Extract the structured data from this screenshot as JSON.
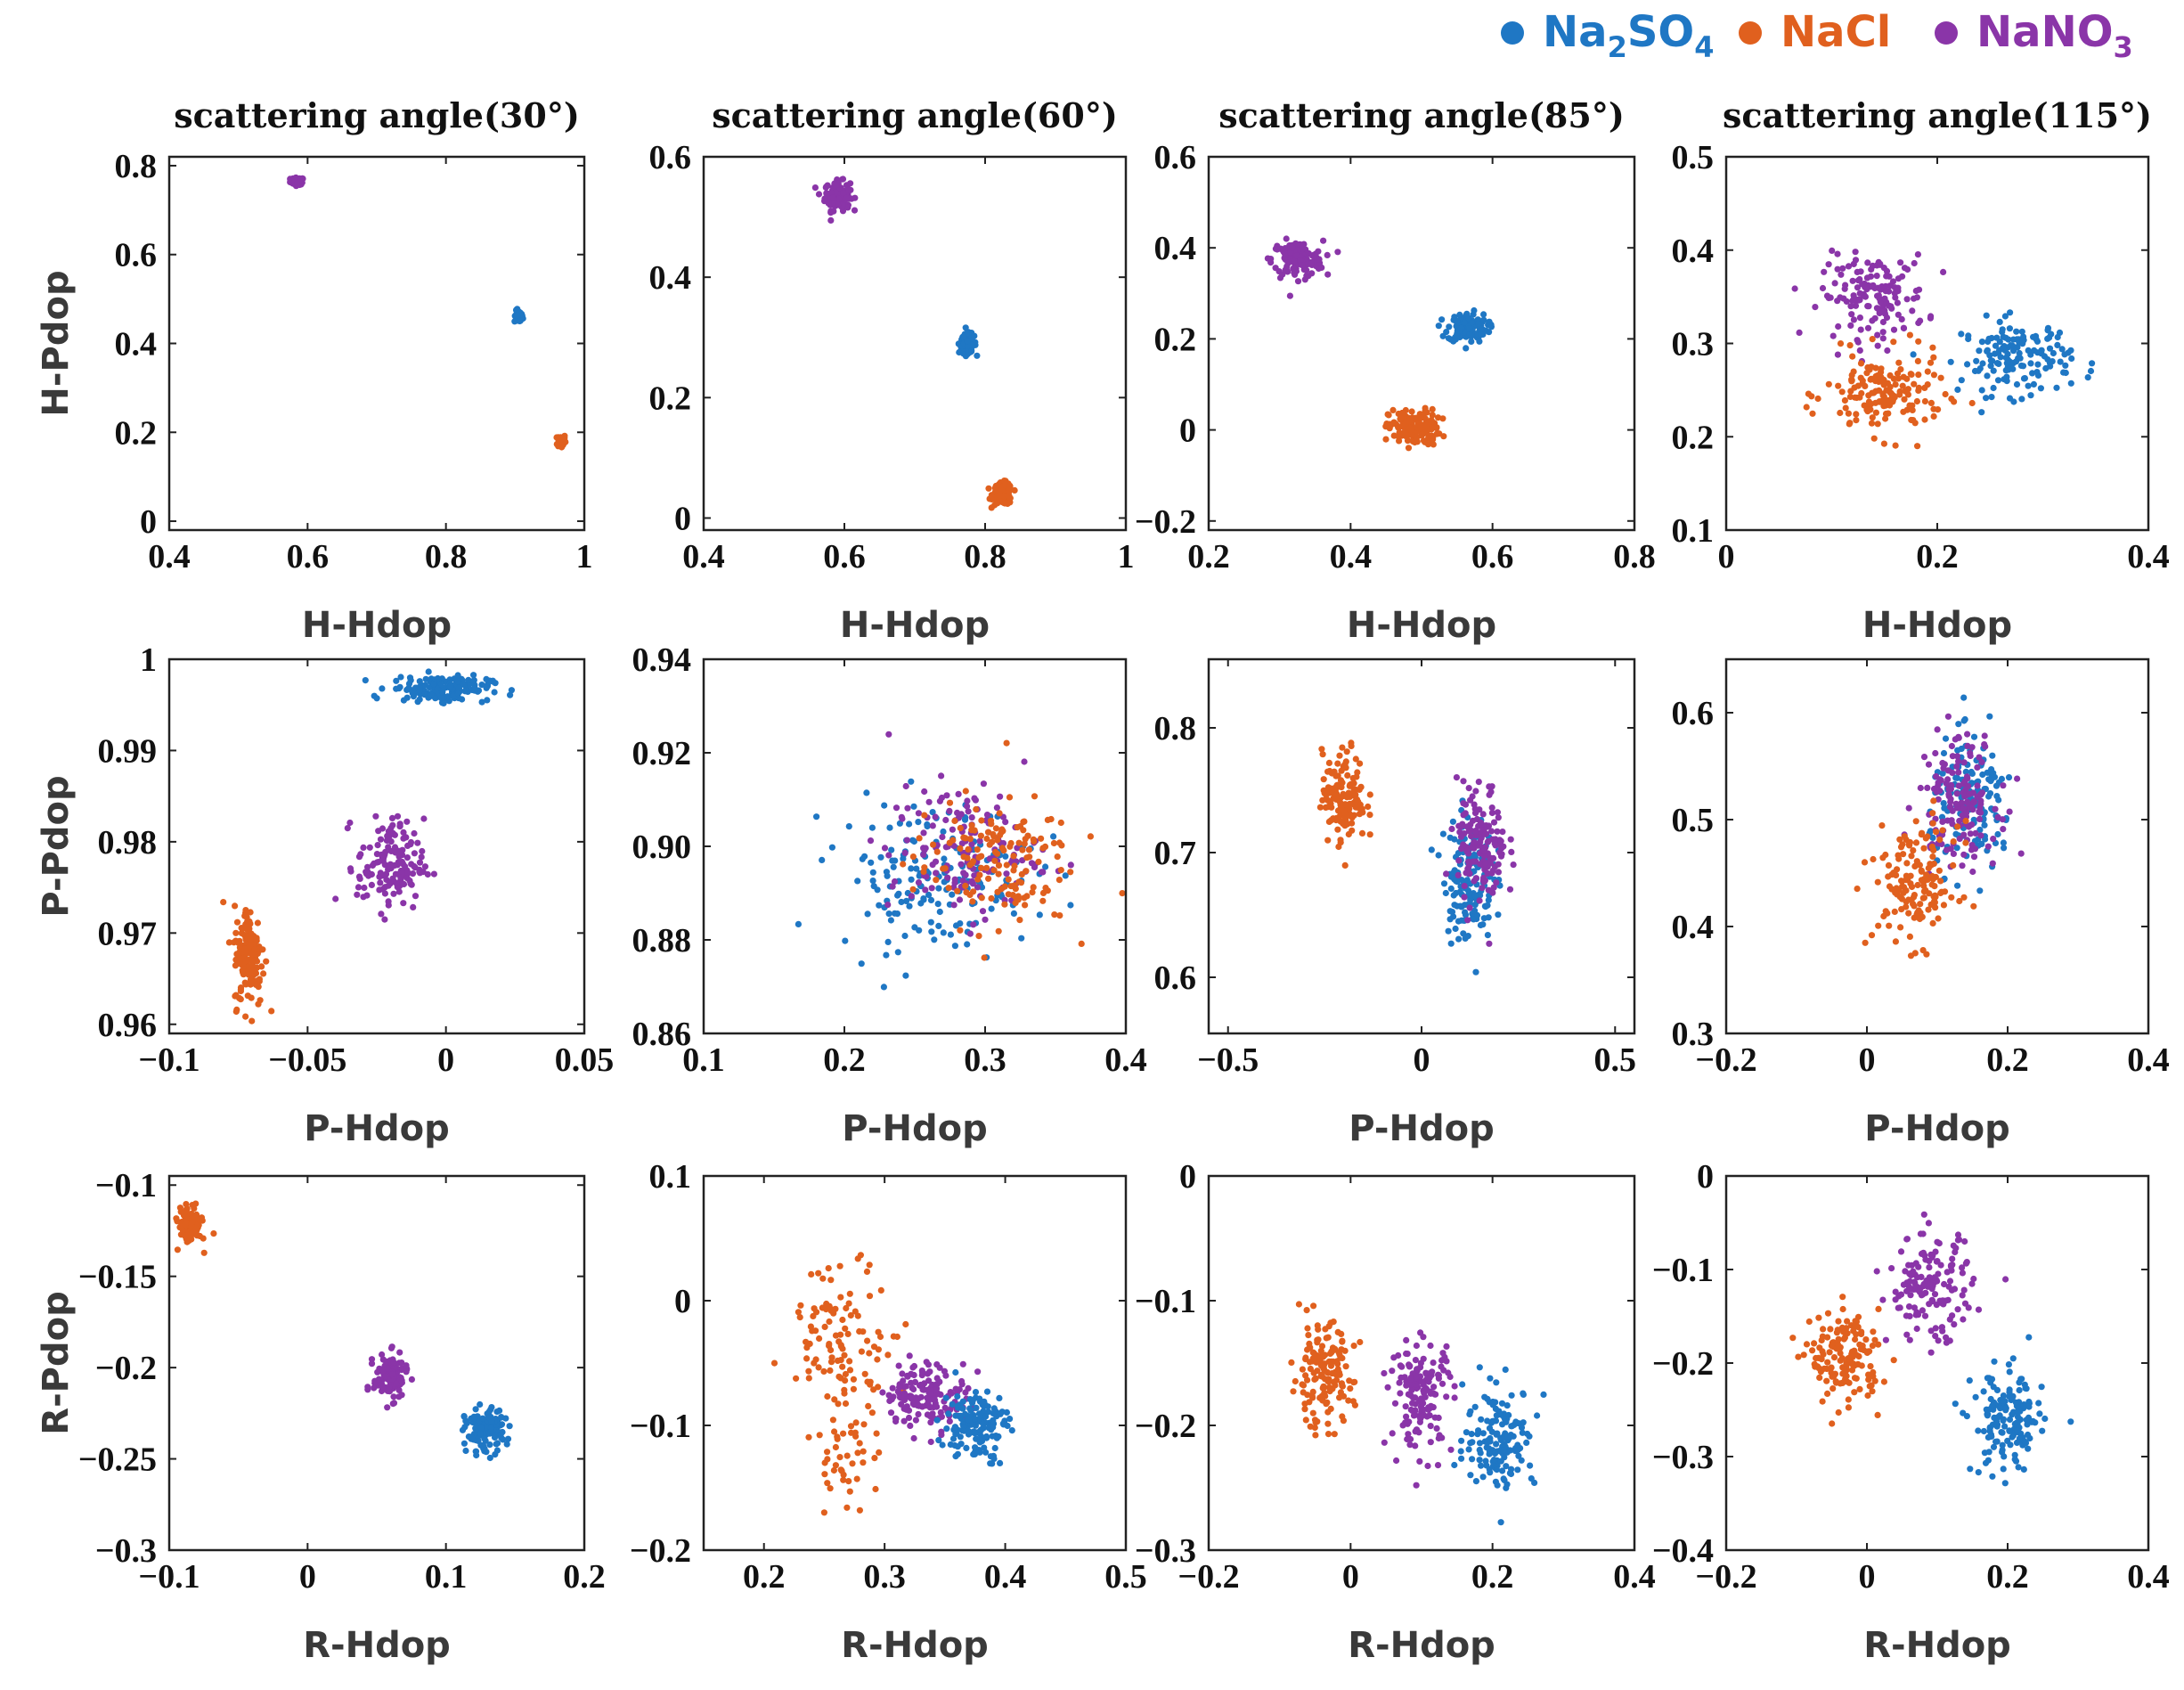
{
  "chart_data": {
    "type": "scatter",
    "legend": {
      "position": "top-right",
      "entries": [
        {
          "key": "na2so4",
          "name": "Na2SO4",
          "base": "Na",
          "sub1": "2",
          "mid": "SO",
          "sub2": "4",
          "color": "#1f77c4"
        },
        {
          "key": "nacl",
          "name": "NaCl",
          "base": "NaCl",
          "color": "#e0601e"
        },
        {
          "key": "nano3",
          "name": "NaNO3",
          "base": "NaNO",
          "sub1": "3",
          "color": "#8a35a8"
        }
      ]
    },
    "column_titles": [
      "scattering angle(30°)",
      "scattering angle(60°)",
      "scattering angle(85°)",
      "scattering angle(115°)"
    ],
    "row_ylabels": [
      "H-Pdop",
      "P-Pdop",
      "R-Pdop"
    ],
    "row_xlabels": [
      "H-Hdop",
      "P-Hdop",
      "R-Hdop"
    ],
    "panels": [
      {
        "id": "r0c0",
        "row": 0,
        "col": 0,
        "xlim": [
          0.4,
          1.0
        ],
        "ylim": [
          -0.02,
          0.82
        ],
        "xticks": [
          {
            "v": 0.4,
            "t": "0.4"
          },
          {
            "v": 0.6,
            "t": "0.6"
          },
          {
            "v": 0.8,
            "t": "0.8"
          },
          {
            "v": 1.0,
            "t": "1"
          }
        ],
        "yticks": [
          {
            "v": 0,
            "t": "0"
          },
          {
            "v": 0.2,
            "t": "0.2"
          },
          {
            "v": 0.4,
            "t": "0.4"
          },
          {
            "v": 0.6,
            "t": "0.6"
          },
          {
            "v": 0.8,
            "t": "0.8"
          }
        ],
        "clusters": [
          {
            "series": "nano3",
            "cx": 0.585,
            "cy": 0.765,
            "sx": 0.005,
            "sy": 0.004,
            "n": 60
          },
          {
            "series": "na2so4",
            "cx": 0.905,
            "cy": 0.46,
            "sx": 0.003,
            "sy": 0.007,
            "n": 50
          },
          {
            "series": "nacl",
            "cx": 0.967,
            "cy": 0.18,
            "sx": 0.003,
            "sy": 0.008,
            "n": 50
          }
        ]
      },
      {
        "id": "r0c1",
        "row": 0,
        "col": 1,
        "xlim": [
          0.4,
          1.0
        ],
        "ylim": [
          -0.02,
          0.6
        ],
        "xticks": [
          {
            "v": 0.4,
            "t": "0.4"
          },
          {
            "v": 0.6,
            "t": "0.6"
          },
          {
            "v": 0.8,
            "t": "0.8"
          },
          {
            "v": 1.0,
            "t": "1"
          }
        ],
        "yticks": [
          {
            "v": 0,
            "t": "0"
          },
          {
            "v": 0.2,
            "t": "0.2"
          },
          {
            "v": 0.4,
            "t": "0.4"
          },
          {
            "v": 0.6,
            "t": "0.6"
          }
        ],
        "clusters": [
          {
            "series": "nano3",
            "cx": 0.59,
            "cy": 0.535,
            "sx": 0.009,
            "sy": 0.012,
            "n": 120
          },
          {
            "series": "na2so4",
            "cx": 0.775,
            "cy": 0.29,
            "sx": 0.006,
            "sy": 0.008,
            "n": 110
          },
          {
            "series": "nacl",
            "cx": 0.825,
            "cy": 0.04,
            "sx": 0.007,
            "sy": 0.009,
            "n": 110
          }
        ]
      },
      {
        "id": "r0c2",
        "row": 0,
        "col": 2,
        "xlim": [
          0.2,
          0.8
        ],
        "ylim": [
          -0.22,
          0.6
        ],
        "xticks": [
          {
            "v": 0.2,
            "t": "0.2"
          },
          {
            "v": 0.4,
            "t": "0.4"
          },
          {
            "v": 0.6,
            "t": "0.6"
          },
          {
            "v": 0.8,
            "t": "0.8"
          }
        ],
        "yticks": [
          {
            "v": -0.2,
            "t": "−0.2"
          },
          {
            "v": 0,
            "t": "0"
          },
          {
            "v": 0.2,
            "t": "0.2"
          },
          {
            "v": 0.4,
            "t": "0.4"
          },
          {
            "v": 0.6,
            "t": "0.6"
          }
        ],
        "clusters": [
          {
            "series": "nano3",
            "cx": 0.325,
            "cy": 0.375,
            "sx": 0.018,
            "sy": 0.02,
            "n": 140
          },
          {
            "series": "na2so4",
            "cx": 0.565,
            "cy": 0.225,
            "sx": 0.014,
            "sy": 0.016,
            "n": 130
          },
          {
            "series": "nacl",
            "cx": 0.49,
            "cy": 0.005,
            "sx": 0.018,
            "sy": 0.02,
            "n": 150
          }
        ]
      },
      {
        "id": "r0c3",
        "row": 0,
        "col": 3,
        "xlim": [
          0,
          0.4
        ],
        "ylim": [
          0.1,
          0.5
        ],
        "xticks": [
          {
            "v": 0,
            "t": "0"
          },
          {
            "v": 0.2,
            "t": "0.2"
          },
          {
            "v": 0.4,
            "t": "0.4"
          }
        ],
        "yticks": [
          {
            "v": 0.1,
            "t": "0.1"
          },
          {
            "v": 0.2,
            "t": "0.2"
          },
          {
            "v": 0.3,
            "t": "0.3"
          },
          {
            "v": 0.4,
            "t": "0.4"
          },
          {
            "v": 0.5,
            "t": "0.5"
          }
        ],
        "clusters": [
          {
            "series": "nano3",
            "cx": 0.14,
            "cy": 0.35,
            "sx": 0.025,
            "sy": 0.022,
            "n": 150
          },
          {
            "series": "na2so4",
            "cx": 0.275,
            "cy": 0.285,
            "sx": 0.026,
            "sy": 0.02,
            "n": 150
          },
          {
            "series": "nacl",
            "cx": 0.15,
            "cy": 0.245,
            "sx": 0.028,
            "sy": 0.022,
            "n": 160
          }
        ]
      },
      {
        "id": "r1c0",
        "row": 1,
        "col": 0,
        "xlim": [
          -0.1,
          0.05
        ],
        "ylim": [
          0.959,
          1.0
        ],
        "xticks": [
          {
            "v": -0.1,
            "t": "−0.1"
          },
          {
            "v": -0.05,
            "t": "−0.05"
          },
          {
            "v": 0,
            "t": "0"
          },
          {
            "v": 0.05,
            "t": "0.05"
          }
        ],
        "yticks": [
          {
            "v": 0.96,
            "t": "0.96"
          },
          {
            "v": 0.97,
            "t": "0.97"
          },
          {
            "v": 0.98,
            "t": "0.98"
          },
          {
            "v": 0.99,
            "t": "0.99"
          },
          {
            "v": 1.0,
            "t": "1"
          }
        ],
        "clusters": [
          {
            "series": "na2so4",
            "cx": -0.002,
            "cy": 0.9968,
            "sx": 0.009,
            "sy": 0.0007,
            "n": 150
          },
          {
            "series": "nano3",
            "cx": -0.02,
            "cy": 0.9775,
            "sx": 0.006,
            "sy": 0.0025,
            "n": 150
          },
          {
            "series": "nacl",
            "cx": -0.071,
            "cy": 0.9675,
            "sx": 0.0028,
            "sy": 0.0028,
            "n": 150
          }
        ]
      },
      {
        "id": "r1c1",
        "row": 1,
        "col": 1,
        "xlim": [
          0.1,
          0.4
        ],
        "ylim": [
          0.86,
          0.94
        ],
        "xticks": [
          {
            "v": 0.1,
            "t": "0.1"
          },
          {
            "v": 0.2,
            "t": "0.2"
          },
          {
            "v": 0.3,
            "t": "0.3"
          },
          {
            "v": 0.4,
            "t": "0.4"
          }
        ],
        "yticks": [
          {
            "v": 0.86,
            "t": "0.86"
          },
          {
            "v": 0.88,
            "t": "0.88"
          },
          {
            "v": 0.9,
            "t": "0.90"
          },
          {
            "v": 0.92,
            "t": "0.92"
          },
          {
            "v": 0.94,
            "t": "0.94"
          }
        ],
        "clusters": [
          {
            "series": "na2so4",
            "cx": 0.265,
            "cy": 0.894,
            "sx": 0.035,
            "sy": 0.008,
            "n": 180
          },
          {
            "series": "nano3",
            "cx": 0.285,
            "cy": 0.899,
            "sx": 0.027,
            "sy": 0.007,
            "n": 150
          },
          {
            "series": "nacl",
            "cx": 0.305,
            "cy": 0.897,
            "sx": 0.028,
            "sy": 0.007,
            "n": 150
          }
        ]
      },
      {
        "id": "r1c2",
        "row": 1,
        "col": 2,
        "xlim": [
          -0.55,
          0.55
        ],
        "ylim": [
          0.555,
          0.855
        ],
        "xticks": [
          {
            "v": -0.5,
            "t": "−0.5"
          },
          {
            "v": 0,
            "t": "0"
          },
          {
            "v": 0.5,
            "t": "0.5"
          }
        ],
        "yticks": [
          {
            "v": 0.6,
            "t": "0.6"
          },
          {
            "v": 0.7,
            "t": "0.7"
          },
          {
            "v": 0.8,
            "t": "0.8"
          }
        ],
        "clusters": [
          {
            "series": "nacl",
            "cx": -0.2,
            "cy": 0.745,
            "sx": 0.028,
            "sy": 0.018,
            "n": 150
          },
          {
            "series": "na2so4",
            "cx": 0.12,
            "cy": 0.68,
            "sx": 0.032,
            "sy": 0.025,
            "n": 150
          },
          {
            "series": "nano3",
            "cx": 0.155,
            "cy": 0.705,
            "sx": 0.032,
            "sy": 0.025,
            "n": 150
          }
        ]
      },
      {
        "id": "r1c3",
        "row": 1,
        "col": 3,
        "xlim": [
          -0.2,
          0.4
        ],
        "ylim": [
          0.3,
          0.65
        ],
        "xticks": [
          {
            "v": -0.2,
            "t": "−0.2"
          },
          {
            "v": 0,
            "t": "0"
          },
          {
            "v": 0.2,
            "t": "0.2"
          },
          {
            "v": 0.4,
            "t": "0.4"
          }
        ],
        "yticks": [
          {
            "v": 0.3,
            "t": "0.3"
          },
          {
            "v": 0.4,
            "t": "0.4"
          },
          {
            "v": 0.5,
            "t": "0.5"
          },
          {
            "v": 0.6,
            "t": "0.6"
          }
        ],
        "clusters": [
          {
            "series": "na2so4",
            "cx": 0.15,
            "cy": 0.515,
            "sx": 0.03,
            "sy": 0.03,
            "n": 150
          },
          {
            "series": "nano3",
            "cx": 0.13,
            "cy": 0.52,
            "sx": 0.028,
            "sy": 0.03,
            "n": 150
          },
          {
            "series": "nacl",
            "cx": 0.07,
            "cy": 0.44,
            "sx": 0.03,
            "sy": 0.028,
            "n": 150
          }
        ]
      },
      {
        "id": "r2c0",
        "row": 2,
        "col": 0,
        "xlim": [
          -0.1,
          0.2
        ],
        "ylim": [
          -0.3,
          -0.095
        ],
        "xticks": [
          {
            "v": -0.1,
            "t": "−0.1"
          },
          {
            "v": 0,
            "t": "0"
          },
          {
            "v": 0.1,
            "t": "0.1"
          },
          {
            "v": 0.2,
            "t": "0.2"
          }
        ],
        "yticks": [
          {
            "v": -0.3,
            "t": "−0.3"
          },
          {
            "v": -0.25,
            "t": "−0.25"
          },
          {
            "v": -0.2,
            "t": "−0.2"
          },
          {
            "v": -0.15,
            "t": "−0.15"
          },
          {
            "v": -0.1,
            "t": "−0.1"
          }
        ],
        "clusters": [
          {
            "series": "nacl",
            "cx": -0.085,
            "cy": -0.122,
            "sx": 0.004,
            "sy": 0.005,
            "n": 120
          },
          {
            "series": "nano3",
            "cx": 0.06,
            "cy": -0.205,
            "sx": 0.006,
            "sy": 0.006,
            "n": 130
          },
          {
            "series": "na2so4",
            "cx": 0.128,
            "cy": -0.235,
            "sx": 0.007,
            "sy": 0.006,
            "n": 130
          }
        ]
      },
      {
        "id": "r2c1",
        "row": 2,
        "col": 1,
        "xlim": [
          0.15,
          0.5
        ],
        "ylim": [
          -0.2,
          0.1
        ],
        "xticks": [
          {
            "v": 0.2,
            "t": "0.2"
          },
          {
            "v": 0.3,
            "t": "0.3"
          },
          {
            "v": 0.4,
            "t": "0.4"
          },
          {
            "v": 0.5,
            "t": "0.5"
          }
        ],
        "yticks": [
          {
            "v": -0.2,
            "t": "−0.2"
          },
          {
            "v": -0.1,
            "t": "−0.1"
          },
          {
            "v": 0,
            "t": "0"
          },
          {
            "v": 0.1,
            "t": "0.1"
          }
        ],
        "clusters": [
          {
            "series": "nacl",
            "cx": 0.265,
            "cy": -0.03,
            "sx": 0.022,
            "sy": 0.03,
            "n": 110
          },
          {
            "series": "nacl",
            "cx": 0.27,
            "cy": -0.13,
            "sx": 0.015,
            "sy": 0.017,
            "n": 40
          },
          {
            "series": "nano3",
            "cx": 0.335,
            "cy": -0.075,
            "sx": 0.017,
            "sy": 0.013,
            "n": 150
          },
          {
            "series": "na2so4",
            "cx": 0.375,
            "cy": -0.1,
            "sx": 0.013,
            "sy": 0.014,
            "n": 150
          }
        ]
      },
      {
        "id": "r2c2",
        "row": 2,
        "col": 2,
        "xlim": [
          -0.2,
          0.4
        ],
        "ylim": [
          -0.3,
          0.0
        ],
        "xticks": [
          {
            "v": -0.2,
            "t": "−0.2"
          },
          {
            "v": 0,
            "t": "0"
          },
          {
            "v": 0.2,
            "t": "0.2"
          },
          {
            "v": 0.4,
            "t": "0.4"
          }
        ],
        "yticks": [
          {
            "v": -0.3,
            "t": "−0.3"
          },
          {
            "v": -0.2,
            "t": "−0.2"
          },
          {
            "v": -0.1,
            "t": "−0.1"
          },
          {
            "v": 0,
            "t": "0"
          }
        ],
        "clusters": [
          {
            "series": "nacl",
            "cx": -0.04,
            "cy": -0.16,
            "sx": 0.022,
            "sy": 0.02,
            "n": 150
          },
          {
            "series": "nano3",
            "cx": 0.1,
            "cy": -0.175,
            "sx": 0.022,
            "sy": 0.022,
            "n": 150
          },
          {
            "series": "na2so4",
            "cx": 0.21,
            "cy": -0.21,
            "sx": 0.025,
            "sy": 0.02,
            "n": 150
          }
        ]
      },
      {
        "id": "r2c3",
        "row": 2,
        "col": 3,
        "xlim": [
          -0.2,
          0.4
        ],
        "ylim": [
          -0.4,
          0.0
        ],
        "xticks": [
          {
            "v": -0.2,
            "t": "−0.2"
          },
          {
            "v": 0,
            "t": "0"
          },
          {
            "v": 0.2,
            "t": "0.2"
          },
          {
            "v": 0.4,
            "t": "0.4"
          }
        ],
        "yticks": [
          {
            "v": -0.4,
            "t": "−0.4"
          },
          {
            "v": -0.3,
            "t": "−0.3"
          },
          {
            "v": -0.2,
            "t": "−0.2"
          },
          {
            "v": -0.1,
            "t": "−0.1"
          },
          {
            "v": 0,
            "t": "0"
          }
        ],
        "clusters": [
          {
            "series": "nacl",
            "cx": -0.03,
            "cy": -0.195,
            "sx": 0.025,
            "sy": 0.025,
            "n": 150
          },
          {
            "series": "nano3",
            "cx": 0.09,
            "cy": -0.12,
            "sx": 0.03,
            "sy": 0.028,
            "n": 150
          },
          {
            "series": "na2so4",
            "cx": 0.2,
            "cy": -0.265,
            "sx": 0.025,
            "sy": 0.028,
            "n": 150
          }
        ]
      }
    ]
  }
}
